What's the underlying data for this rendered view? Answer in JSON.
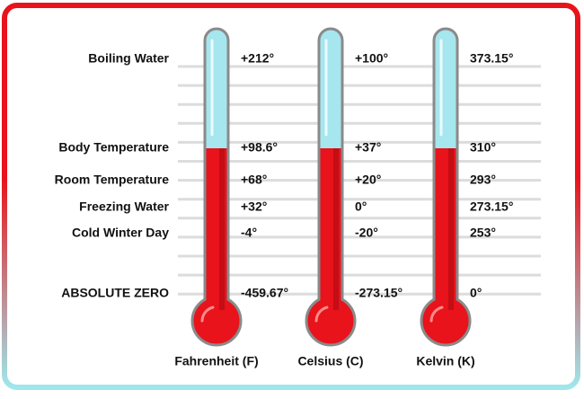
{
  "rows": [
    "Boiling Water",
    "Body Temperature",
    "Room Temperature",
    "Freezing Water",
    "Cold Winter Day",
    "ABSOLUTE ZERO"
  ],
  "columns": [
    {
      "name": "Fahrenheit (F)",
      "values": [
        "+212°",
        "+98.6°",
        "+68°",
        "+32°",
        "-4°",
        "-459.67°"
      ]
    },
    {
      "name": "Celsius (C)",
      "values": [
        "+100°",
        "+37°",
        "+20°",
        "0°",
        "-20°",
        "-273.15°"
      ]
    },
    {
      "name": "Kelvin (K)",
      "values": [
        "373.15°",
        "310°",
        "293°",
        "273.15°",
        "253°",
        "0°"
      ]
    }
  ]
}
